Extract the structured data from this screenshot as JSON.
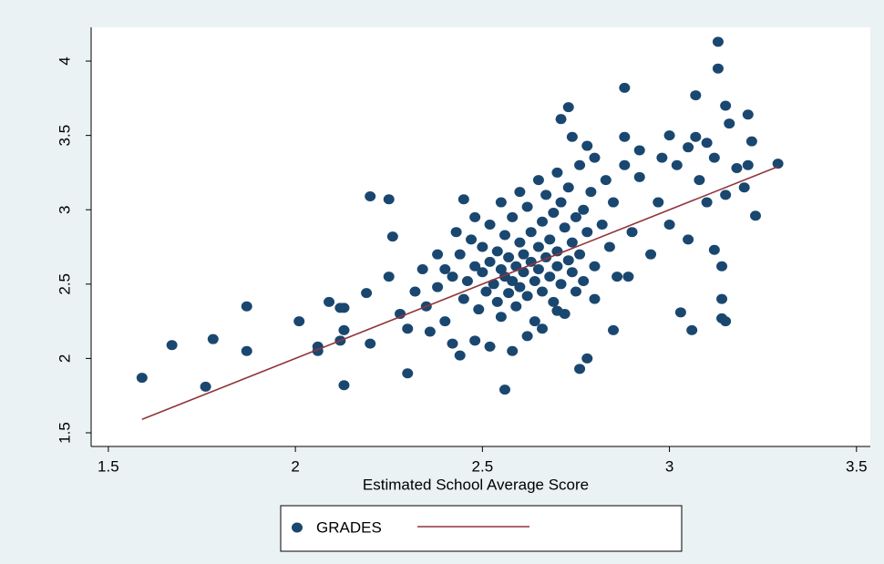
{
  "chart_data": {
    "type": "scatter",
    "x_label": "Estimated School Average Score",
    "xlim": [
      1.454,
      3.537
    ],
    "ylim": [
      1.408,
      4.227
    ],
    "xticks": [
      1.5,
      2,
      2.5,
      3,
      3.5
    ],
    "yticks": [
      1.5,
      2,
      2.5,
      3,
      3.5,
      4
    ],
    "grid": false,
    "series": [
      {
        "name": "GRADES",
        "type": "scatter",
        "color": "#1a476f",
        "x": [
          1.59,
          1.67,
          1.78,
          1.76,
          1.87,
          1.87,
          2.01,
          2.06,
          2.06,
          2.09,
          2.12,
          2.13,
          2.13,
          2.12,
          2.13,
          2.19,
          2.2,
          2.25,
          2.26,
          2.2,
          2.3,
          2.56,
          2.45,
          2.71,
          2.73,
          2.88,
          3.13,
          3.13,
          3.07,
          3.23,
          3.29,
          3.21,
          3.14,
          3.14,
          3.15,
          3.03,
          3.06,
          2.85,
          2.76,
          2.78,
          3.12,
          3.14,
          2.89,
          2.88,
          2.78,
          2.74,
          3.0,
          3.07,
          3.15,
          3.16,
          3.22,
          3.21,
          2.35,
          2.38,
          2.4,
          2.42,
          2.44,
          2.45,
          2.46,
          2.47,
          2.48,
          2.49,
          2.5,
          2.5,
          2.51,
          2.52,
          2.52,
          2.53,
          2.54,
          2.54,
          2.55,
          2.55,
          2.56,
          2.56,
          2.57,
          2.57,
          2.58,
          2.58,
          2.59,
          2.59,
          2.6,
          2.6,
          2.61,
          2.61,
          2.62,
          2.62,
          2.63,
          2.63,
          2.64,
          2.64,
          2.65,
          2.65,
          2.66,
          2.66,
          2.67,
          2.67,
          2.68,
          2.68,
          2.69,
          2.69,
          2.7,
          2.7,
          2.71,
          2.71,
          2.72,
          2.72,
          2.73,
          2.73,
          2.74,
          2.74,
          2.75,
          2.75,
          2.76,
          2.77,
          2.77,
          2.78,
          2.79,
          2.8,
          2.8,
          2.82,
          2.83,
          2.84,
          2.85,
          2.86,
          2.88,
          2.9,
          2.92,
          2.95,
          2.97,
          3.0,
          3.02,
          3.05,
          3.08,
          3.1,
          3.12,
          3.15,
          3.18,
          3.2,
          2.3,
          2.32,
          2.28,
          2.25,
          2.36,
          2.4,
          2.42,
          2.44,
          2.48,
          2.52,
          2.58,
          2.62,
          2.66,
          2.7,
          2.34,
          2.38,
          2.43,
          2.48,
          2.55,
          2.6,
          2.65,
          2.7,
          2.76,
          2.8,
          2.92,
          2.98,
          3.05,
          3.1
        ],
        "values": [
          1.87,
          2.09,
          2.13,
          1.81,
          2.35,
          2.05,
          2.25,
          2.08,
          2.05,
          2.38,
          2.12,
          1.82,
          2.19,
          2.34,
          2.34,
          2.44,
          3.09,
          3.07,
          2.82,
          2.1,
          1.9,
          1.79,
          3.07,
          3.61,
          3.69,
          3.82,
          4.13,
          3.95,
          3.77,
          2.96,
          3.31,
          3.64,
          2.4,
          2.27,
          2.25,
          2.31,
          2.19,
          2.19,
          1.93,
          2.0,
          2.73,
          2.62,
          2.55,
          3.49,
          3.43,
          3.49,
          3.5,
          3.49,
          3.7,
          3.58,
          3.46,
          3.3,
          2.35,
          2.48,
          2.6,
          2.55,
          2.7,
          2.4,
          2.52,
          2.8,
          2.62,
          2.33,
          2.58,
          2.75,
          2.45,
          2.9,
          2.65,
          2.5,
          2.38,
          2.72,
          2.6,
          2.28,
          2.83,
          2.55,
          2.68,
          2.44,
          2.95,
          2.52,
          2.62,
          2.35,
          2.78,
          2.48,
          2.7,
          2.58,
          3.02,
          2.42,
          2.65,
          2.85,
          2.52,
          2.25,
          2.75,
          2.6,
          2.92,
          2.45,
          2.68,
          3.1,
          2.55,
          2.8,
          2.38,
          2.98,
          2.62,
          2.72,
          2.5,
          3.05,
          2.88,
          2.3,
          2.66,
          3.15,
          2.58,
          2.78,
          2.95,
          2.45,
          2.7,
          3.0,
          2.52,
          2.85,
          3.12,
          2.62,
          2.4,
          2.9,
          3.2,
          2.75,
          3.05,
          2.55,
          3.3,
          2.85,
          3.22,
          2.7,
          3.05,
          2.9,
          3.3,
          2.8,
          3.2,
          3.05,
          3.35,
          3.1,
          3.28,
          3.15,
          2.2,
          2.45,
          2.3,
          2.55,
          2.18,
          2.25,
          2.1,
          2.02,
          2.12,
          2.08,
          2.05,
          2.15,
          2.2,
          2.32,
          2.6,
          2.7,
          2.85,
          2.95,
          3.05,
          3.12,
          3.2,
          3.25,
          3.3,
          3.35,
          3.4,
          3.35,
          3.42,
          3.45
        ]
      },
      {
        "type": "line",
        "color": "#90353b",
        "x": [
          1.59,
          3.29
        ],
        "values": [
          1.59,
          3.29
        ]
      }
    ]
  }
}
